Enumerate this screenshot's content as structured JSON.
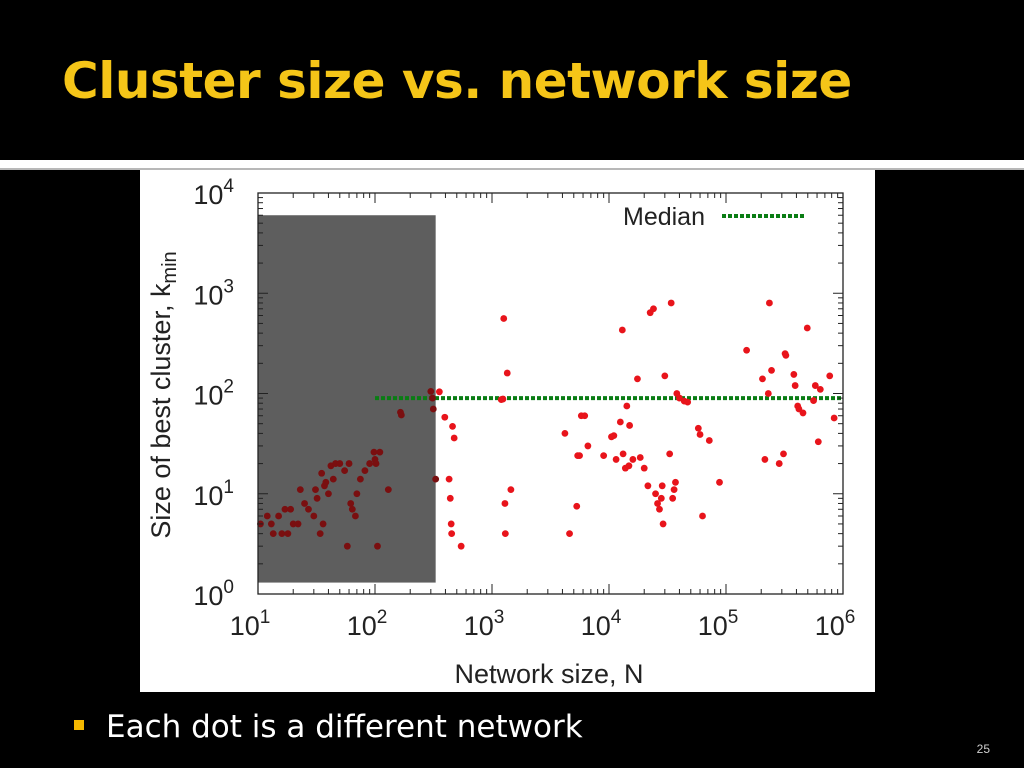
{
  "slide": {
    "title": "Cluster size vs. network size",
    "bullet": "Each dot is a different network",
    "page_number": "25"
  },
  "colors": {
    "title": "#f5c518",
    "points": "#e8141b",
    "points_in_shade": "#7a0f10",
    "median": "#0a7d14",
    "shade": "#555555",
    "bullet": "#f5b800"
  },
  "chart_data": {
    "type": "scatter",
    "xscale": "log",
    "yscale": "log",
    "xlabel": "Network size, N",
    "ylabel": "Size of best cluster, k",
    "ylabel_sub": "min",
    "xlim": [
      10,
      1000000
    ],
    "ylim": [
      1,
      10000
    ],
    "x_ticks": [
      {
        "value": 10,
        "base": "10",
        "exp": "1"
      },
      {
        "value": 100,
        "base": "10",
        "exp": "2"
      },
      {
        "value": 1000,
        "base": "10",
        "exp": "3"
      },
      {
        "value": 10000,
        "base": "10",
        "exp": "4"
      },
      {
        "value": 100000,
        "base": "10",
        "exp": "5"
      },
      {
        "value": 1000000,
        "base": "10",
        "exp": "6"
      }
    ],
    "y_ticks": [
      {
        "value": 1,
        "base": "10",
        "exp": "0"
      },
      {
        "value": 10,
        "base": "10",
        "exp": "1"
      },
      {
        "value": 100,
        "base": "10",
        "exp": "2"
      },
      {
        "value": 1000,
        "base": "10",
        "exp": "3"
      },
      {
        "value": 10000,
        "base": "10",
        "exp": "4"
      }
    ],
    "grid": false,
    "legend": {
      "position": "top-right",
      "entries": [
        "Median"
      ]
    },
    "shaded_region": {
      "x": [
        10,
        330
      ],
      "y": [
        1.3,
        6000
      ]
    },
    "median": {
      "name": "Median",
      "x": [
        100,
        1000000
      ],
      "y": 90
    },
    "points": [
      [
        10.5,
        5
      ],
      [
        12,
        6
      ],
      [
        13,
        5
      ],
      [
        13.5,
        4
      ],
      [
        15,
        6
      ],
      [
        16,
        4
      ],
      [
        17,
        7
      ],
      [
        18,
        4
      ],
      [
        19,
        7
      ],
      [
        20,
        5
      ],
      [
        22,
        5
      ],
      [
        23,
        11
      ],
      [
        25,
        8
      ],
      [
        27,
        7
      ],
      [
        30,
        6
      ],
      [
        31,
        11
      ],
      [
        32,
        9
      ],
      [
        34,
        4
      ],
      [
        35,
        16
      ],
      [
        36,
        5
      ],
      [
        37,
        12
      ],
      [
        38,
        13
      ],
      [
        40,
        10
      ],
      [
        42,
        19
      ],
      [
        44,
        14
      ],
      [
        46,
        20
      ],
      [
        50,
        20
      ],
      [
        55,
        17
      ],
      [
        58,
        3
      ],
      [
        60,
        20
      ],
      [
        62,
        8
      ],
      [
        64,
        7
      ],
      [
        68,
        6
      ],
      [
        70,
        10
      ],
      [
        75,
        14
      ],
      [
        82,
        17
      ],
      [
        90,
        20
      ],
      [
        98,
        26
      ],
      [
        100,
        22
      ],
      [
        102,
        20
      ],
      [
        105,
        3
      ],
      [
        110,
        26
      ],
      [
        130,
        11
      ],
      [
        165,
        65
      ],
      [
        168,
        61
      ],
      [
        300,
        105
      ],
      [
        310,
        90
      ],
      [
        315,
        70
      ],
      [
        330,
        14
      ],
      [
        355,
        104
      ],
      [
        395,
        58
      ],
      [
        430,
        14
      ],
      [
        440,
        9
      ],
      [
        448,
        5
      ],
      [
        452,
        4
      ],
      [
        460,
        47
      ],
      [
        475,
        36
      ],
      [
        545,
        3
      ],
      [
        1200,
        87
      ],
      [
        1240,
        88
      ],
      [
        1260,
        560
      ],
      [
        1290,
        8
      ],
      [
        1300,
        4
      ],
      [
        1350,
        160
      ],
      [
        1450,
        11
      ],
      [
        4200,
        40
      ],
      [
        4600,
        4
      ],
      [
        5300,
        7.5
      ],
      [
        5400,
        24
      ],
      [
        5600,
        24
      ],
      [
        5800,
        60
      ],
      [
        6200,
        60
      ],
      [
        6600,
        30
      ],
      [
        9000,
        24
      ],
      [
        10500,
        37
      ],
      [
        11000,
        38
      ],
      [
        11500,
        22
      ],
      [
        12500,
        52
      ],
      [
        13000,
        430
      ],
      [
        13200,
        25
      ],
      [
        13800,
        18
      ],
      [
        14200,
        75
      ],
      [
        14800,
        19
      ],
      [
        15000,
        48
      ],
      [
        16000,
        22
      ],
      [
        17500,
        140
      ],
      [
        18500,
        23
      ],
      [
        20000,
        18
      ],
      [
        21500,
        12
      ],
      [
        22500,
        640
      ],
      [
        24000,
        700
      ],
      [
        25000,
        10
      ],
      [
        26000,
        8
      ],
      [
        27000,
        7
      ],
      [
        28000,
        9
      ],
      [
        28500,
        12
      ],
      [
        29000,
        5
      ],
      [
        30000,
        150
      ],
      [
        33000,
        25
      ],
      [
        34000,
        800
      ],
      [
        35000,
        9
      ],
      [
        36000,
        11
      ],
      [
        37000,
        13
      ],
      [
        38000,
        100
      ],
      [
        40000,
        90
      ],
      [
        44000,
        84
      ],
      [
        47000,
        82
      ],
      [
        58000,
        45
      ],
      [
        60000,
        39
      ],
      [
        63000,
        6
      ],
      [
        72000,
        34
      ],
      [
        88000,
        13
      ],
      [
        150000,
        270
      ],
      [
        205000,
        140
      ],
      [
        215000,
        22
      ],
      [
        230000,
        100
      ],
      [
        235000,
        800
      ],
      [
        245000,
        170
      ],
      [
        285000,
        20
      ],
      [
        310000,
        25
      ],
      [
        320000,
        250
      ],
      [
        325000,
        240
      ],
      [
        380000,
        155
      ],
      [
        390000,
        120
      ],
      [
        410000,
        75
      ],
      [
        420000,
        70
      ],
      [
        455000,
        64
      ],
      [
        495000,
        450
      ],
      [
        560000,
        85
      ],
      [
        580000,
        120
      ],
      [
        615000,
        33
      ],
      [
        640000,
        110
      ],
      [
        770000,
        150
      ],
      [
        840000,
        57
      ]
    ]
  }
}
